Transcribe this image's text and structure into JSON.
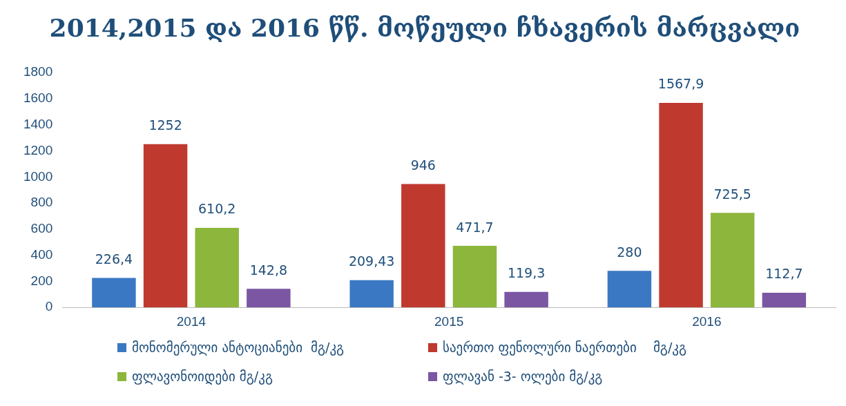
{
  "chart_data": {
    "type": "bar",
    "title": "2014,2015 და 2016 წწ. მოწეული ჩხავერის მარცვალი",
    "categories": [
      "2014",
      "2015",
      "2016"
    ],
    "series": [
      {
        "name": "მონომერული ანტოციანები  მგ/კგ",
        "color": "#3a78c3",
        "values": [
          226.4,
          209.43,
          280
        ],
        "value_labels": [
          "226,4",
          "209,43",
          "280"
        ]
      },
      {
        "name": "საერთო ფენოლური ნაერთები    მგ/კგ",
        "color": "#c0392f",
        "values": [
          1252,
          946,
          1567.9
        ],
        "value_labels": [
          "1252",
          "946",
          "1567,9"
        ]
      },
      {
        "name": "ფლავონოიდები მგ/კგ",
        "color": "#8db63c",
        "values": [
          610.2,
          471.7,
          725.5
        ],
        "value_labels": [
          "610,2",
          "471,7",
          "725,5"
        ]
      },
      {
        "name": "ფლავან -3- ოლები მგ/კგ",
        "color": "#7b56a3",
        "values": [
          142.8,
          119.3,
          112.7
        ],
        "value_labels": [
          "142,8",
          "119,3",
          "112,7"
        ]
      }
    ],
    "ylim": [
      0,
      1800
    ],
    "yticks": [
      0,
      200,
      400,
      600,
      800,
      1000,
      1200,
      1400,
      1600,
      1800
    ],
    "grid": false,
    "legend": "bottom"
  }
}
